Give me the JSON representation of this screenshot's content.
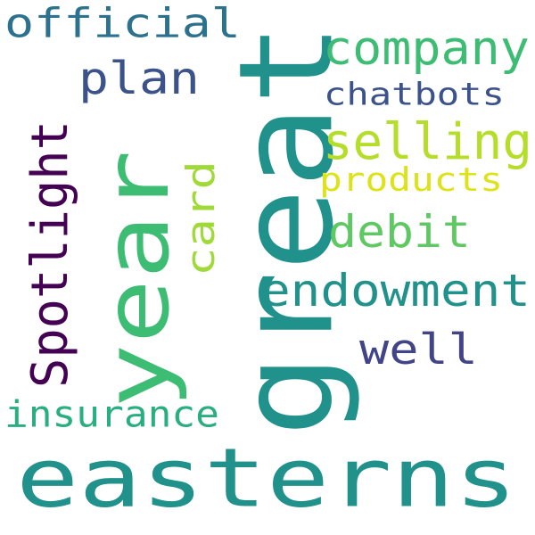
{
  "words": [
    {
      "key": "easterns",
      "text": "easterns",
      "color": "#21918c"
    },
    {
      "key": "great",
      "text": "great",
      "color": "#21918c"
    },
    {
      "key": "year",
      "text": "year",
      "color": "#3dbc74"
    },
    {
      "key": "spotlight",
      "text": "Spotlight",
      "color": "#440154"
    },
    {
      "key": "official",
      "text": "official",
      "color": "#2c728e"
    },
    {
      "key": "company",
      "text": "company",
      "color": "#3dbc74"
    },
    {
      "key": "plan",
      "text": "plan",
      "color": "#3b528b"
    },
    {
      "key": "chatbots",
      "text": "chatbots",
      "color": "#3b528b"
    },
    {
      "key": "selling",
      "text": "selling",
      "color": "#b5de2b"
    },
    {
      "key": "products",
      "text": "products",
      "color": "#dde318"
    },
    {
      "key": "card",
      "text": "card",
      "color": "#a0da39"
    },
    {
      "key": "debit",
      "text": "debit",
      "color": "#5ec962"
    },
    {
      "key": "endowment",
      "text": "endowment",
      "color": "#21918c"
    },
    {
      "key": "well",
      "text": "well",
      "color": "#414487"
    },
    {
      "key": "insurance",
      "text": "insurance",
      "color": "#29af7f"
    }
  ]
}
